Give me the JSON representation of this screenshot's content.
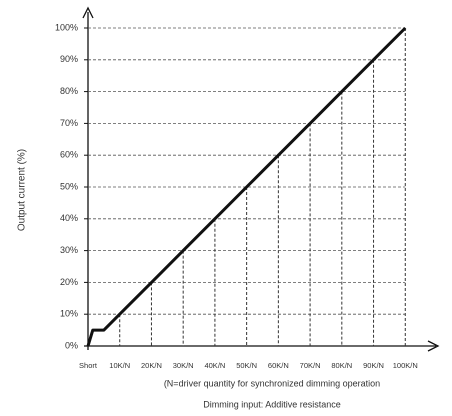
{
  "chart_data": {
    "type": "line",
    "y_label": "Output current (%)",
    "notes": [
      "(N=driver quantity for synchronized dimming operation",
      "Dimming input: Additive resistance"
    ],
    "x": [
      0,
      1.5,
      5,
      10,
      20,
      30,
      40,
      50,
      60,
      70,
      80,
      90,
      100
    ],
    "series": [
      {
        "color": "#111111",
        "values": [
          0,
          5,
          5,
          10,
          20,
          30,
          40,
          50,
          60,
          70,
          80,
          90,
          100
        ]
      }
    ],
    "xlim": [
      0,
      110
    ],
    "ylim": [
      0,
      100
    ],
    "xticks": [
      {
        "value": 0,
        "label": "Short"
      },
      {
        "value": 10,
        "label": "10K/N"
      },
      {
        "value": 20,
        "label": "20K/N"
      },
      {
        "value": 30,
        "label": "30K/N"
      },
      {
        "value": 40,
        "label": "40K/N"
      },
      {
        "value": 50,
        "label": "50K/N"
      },
      {
        "value": 60,
        "label": "60K/N"
      },
      {
        "value": 70,
        "label": "70K/N"
      },
      {
        "value": 80,
        "label": "80K/N"
      },
      {
        "value": 90,
        "label": "90K/N"
      },
      {
        "value": 100,
        "label": "100K/N"
      }
    ],
    "yticks": [
      {
        "value": 0,
        "label": "0%"
      },
      {
        "value": 10,
        "label": "10%"
      },
      {
        "value": 20,
        "label": "20%"
      },
      {
        "value": 30,
        "label": "30%"
      },
      {
        "value": 40,
        "label": "40%"
      },
      {
        "value": 50,
        "label": "50%"
      },
      {
        "value": 60,
        "label": "60%"
      },
      {
        "value": 70,
        "label": "70%"
      },
      {
        "value": 80,
        "label": "80%"
      },
      {
        "value": 90,
        "label": "90%"
      },
      {
        "value": 100,
        "label": "100%"
      }
    ],
    "grid": true
  }
}
